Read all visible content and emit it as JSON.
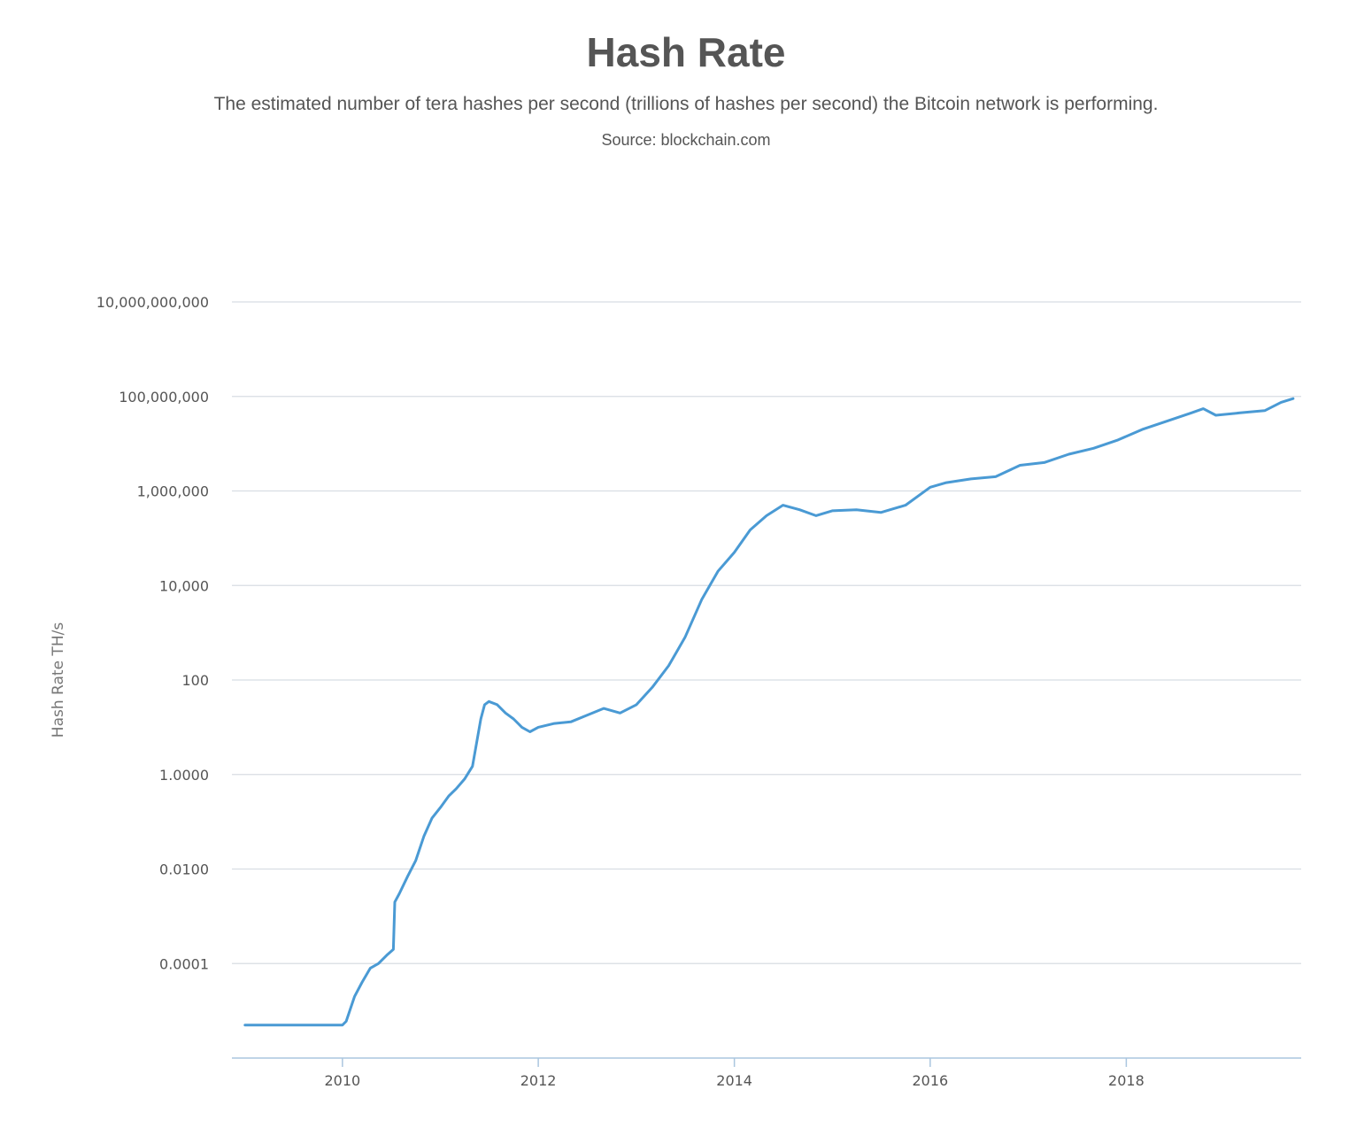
{
  "chart_data": {
    "type": "line",
    "title": "Hash Rate",
    "subtitle": "The estimated number of tera hashes per second (trillions of hashes per second) the Bitcoin network is performing.",
    "source": "Source: blockchain.com",
    "ylabel": "Hash Rate TH/s",
    "xlabel": "",
    "yscale": "log",
    "ylim": [
      1e-06,
      10000000000.0
    ],
    "y_tick_values": [
      0.0001,
      0.01,
      1,
      100.0,
      10000.0,
      1000000.0,
      100000000.0,
      10000000000.0
    ],
    "y_tick_labels": [
      "0.0001",
      "0.0100",
      "1.0000",
      "100",
      "10,000",
      "1,000,000",
      "100,000,000",
      "10,000,000,000"
    ],
    "xlim": [
      "2008-11-15",
      "2019-10-15"
    ],
    "x_tick_labels": [
      "2010",
      "2012",
      "2014",
      "2016",
      "2018"
    ],
    "grid": true,
    "color": "#4a9ad4",
    "series": [
      {
        "x": [
          "2009-01-03",
          "2009-06-01",
          "2010-01-01",
          "2010-01-15",
          "2010-02-15",
          "2010-03-15",
          "2010-04-15",
          "2010-05-15",
          "2010-06-15",
          "2010-07-10",
          "2010-07-15",
          "2010-08-01",
          "2010-09-01",
          "2010-10-01",
          "2010-11-01",
          "2010-12-01",
          "2011-01-01",
          "2011-02-01",
          "2011-03-01",
          "2011-04-01",
          "2011-05-01",
          "2011-06-01",
          "2011-06-15",
          "2011-07-01",
          "2011-08-01",
          "2011-09-01",
          "2011-10-01",
          "2011-11-01",
          "2011-12-01",
          "2012-01-01",
          "2012-03-01",
          "2012-05-01",
          "2012-07-01",
          "2012-09-01",
          "2012-11-01",
          "2013-01-01",
          "2013-03-01",
          "2013-05-01",
          "2013-07-01",
          "2013-09-01",
          "2013-11-01",
          "2014-01-01",
          "2014-03-01",
          "2014-05-01",
          "2014-07-01",
          "2014-09-01",
          "2014-11-01",
          "2015-01-01",
          "2015-04-01",
          "2015-07-01",
          "2015-10-01",
          "2016-01-01",
          "2016-03-01",
          "2016-06-01",
          "2016-09-01",
          "2016-12-01",
          "2017-03-01",
          "2017-06-01",
          "2017-09-01",
          "2017-12-01",
          "2018-03-01",
          "2018-06-01",
          "2018-09-01",
          "2018-10-15",
          "2018-12-01",
          "2019-03-01",
          "2019-06-01",
          "2019-08-01",
          "2019-09-15"
        ],
        "values": [
          5e-06,
          5e-06,
          5e-06,
          6e-06,
          2e-05,
          4e-05,
          8e-05,
          0.0001,
          0.00015,
          0.0002,
          0.002,
          0.003,
          0.007,
          0.015,
          0.05,
          0.12,
          0.2,
          0.35,
          0.5,
          0.8,
          1.5,
          15,
          30,
          35,
          30,
          20,
          15,
          10,
          8,
          10,
          12,
          13,
          18,
          25,
          20,
          30,
          70,
          200,
          800,
          5000,
          20000,
          50000,
          150000,
          300000,
          500000,
          400000,
          300000,
          380000,
          400000,
          350000,
          500000,
          1200000,
          1500000,
          1800000,
          2000000,
          3500000,
          4000000,
          6000000,
          8000000,
          12000000,
          20000000,
          30000000,
          45000000,
          55000000,
          40000000,
          45000000,
          50000000,
          75000000,
          90000000
        ]
      }
    ]
  }
}
